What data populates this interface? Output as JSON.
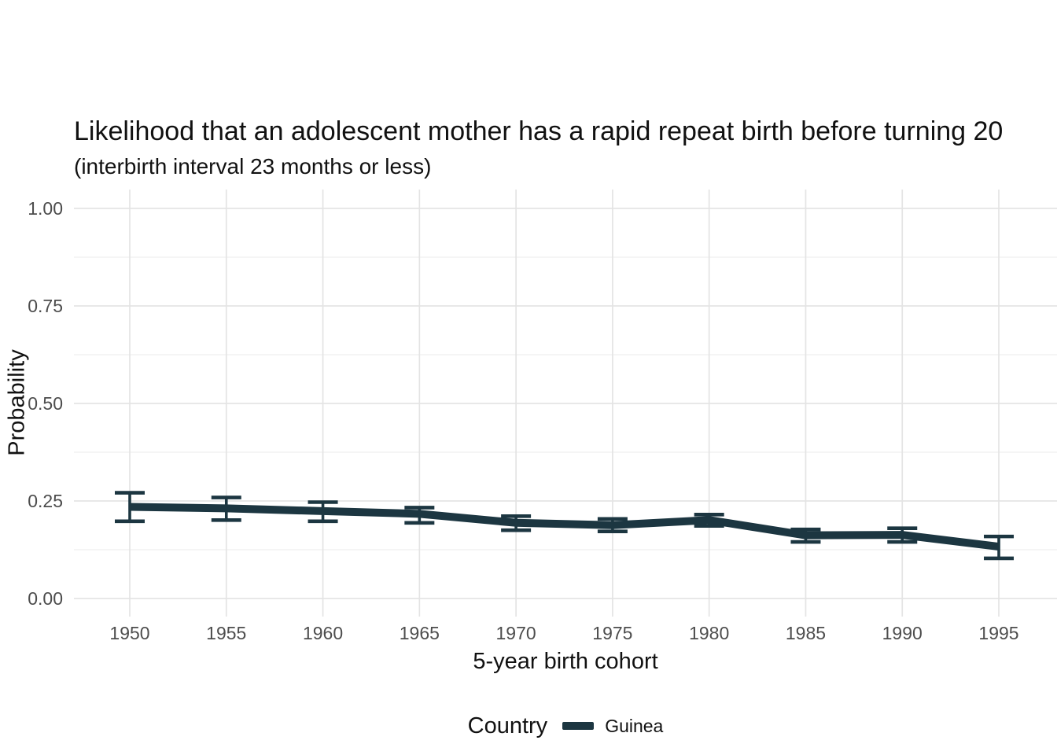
{
  "chart_data": {
    "type": "line",
    "title": "Likelihood that an adolescent mother has a rapid repeat birth before turning 20",
    "subtitle": "(interbirth interval 23 months or less)",
    "xlabel": "5-year birth cohort",
    "ylabel": "Probability",
    "x": [
      1950,
      1955,
      1960,
      1965,
      1970,
      1975,
      1980,
      1985,
      1990,
      1995
    ],
    "xtick_labels": [
      "1950",
      "1955",
      "1960",
      "1965",
      "1970",
      "1975",
      "1980",
      "1985",
      "1990",
      "1995"
    ],
    "yticks": [
      0.0,
      0.25,
      0.5,
      0.75,
      1.0
    ],
    "ytick_labels": [
      "0.00",
      "0.25",
      "0.50",
      "0.75",
      "1.00"
    ],
    "yminor_ticks": [
      0.125,
      0.375,
      0.625,
      0.875
    ],
    "ylim": [
      -0.05,
      1.05
    ],
    "xlim": [
      1947.1,
      1998.0
    ],
    "grid": "horizontal major+minor, vertical major only",
    "legend_position": "bottom",
    "legend_title": "Country",
    "series": [
      {
        "name": "Guinea",
        "color": "#1c3641",
        "values": [
          0.235,
          0.231,
          0.224,
          0.217,
          0.194,
          0.188,
          0.201,
          0.162,
          0.163,
          0.133
        ],
        "ci_low": [
          0.198,
          0.201,
          0.198,
          0.194,
          0.175,
          0.172,
          0.186,
          0.145,
          0.145,
          0.103
        ],
        "ci_high": [
          0.271,
          0.259,
          0.247,
          0.233,
          0.211,
          0.204,
          0.215,
          0.177,
          0.18,
          0.159
        ],
        "error_bars": true
      }
    ]
  },
  "colors": {
    "background": "#ffffff",
    "line": "#1c3641",
    "grid_major": "#e4e4e4",
    "grid_minor": "#efefef",
    "axis_text": "#4d4d4d",
    "title_text": "#111111"
  }
}
